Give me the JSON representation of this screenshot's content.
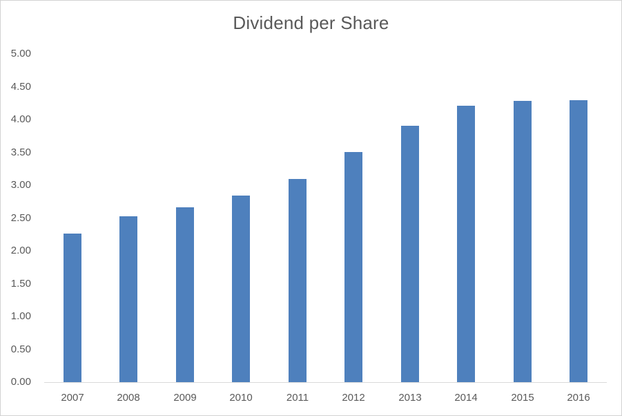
{
  "chart_data": {
    "type": "bar",
    "title": "Dividend per Share",
    "categories": [
      "2007",
      "2008",
      "2009",
      "2010",
      "2011",
      "2012",
      "2013",
      "2014",
      "2015",
      "2016"
    ],
    "values": [
      2.26,
      2.53,
      2.66,
      2.84,
      3.09,
      3.51,
      3.9,
      4.21,
      4.28,
      4.29
    ],
    "xlabel": "",
    "ylabel": "",
    "ylim": [
      0,
      5
    ],
    "ytick_step": 0.5,
    "ytick_labels": [
      "0.00",
      "0.50",
      "1.00",
      "1.50",
      "2.00",
      "2.50",
      "3.00",
      "3.50",
      "4.00",
      "4.50",
      "5.00"
    ],
    "grid": false,
    "legend": "none",
    "colors": {
      "bar": "#4e80bd",
      "text": "#595959",
      "axis_line": "#d9d9d9",
      "chart_border": "#d2d2d2",
      "background": "#ffffff"
    }
  }
}
